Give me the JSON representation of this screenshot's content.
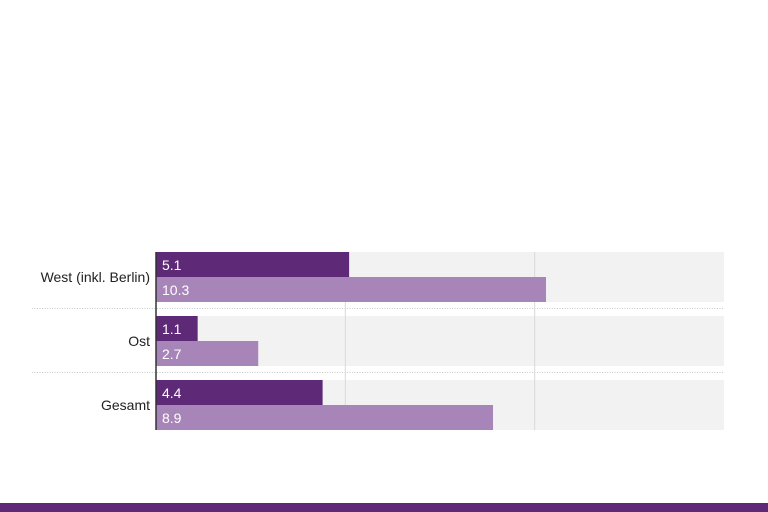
{
  "chart_data": {
    "type": "bar",
    "orientation": "horizontal",
    "categories": [
      "West (inkl. Berlin)",
      "Ost",
      "Gesamt"
    ],
    "series": [
      {
        "values": [
          5.1,
          1.1,
          4.4
        ],
        "color": "#5e2a78"
      },
      {
        "values": [
          10.3,
          2.7,
          8.9
        ],
        "color": "#a885b9"
      }
    ],
    "xlim": [
      0,
      15
    ],
    "gridlines": [
      5,
      10
    ],
    "grid": true,
    "title": "",
    "xlabel": "",
    "ylabel": ""
  },
  "colors": {
    "footer": "#5e2a78",
    "track": "#f2f2f2",
    "grid": "#d9d9d9"
  }
}
